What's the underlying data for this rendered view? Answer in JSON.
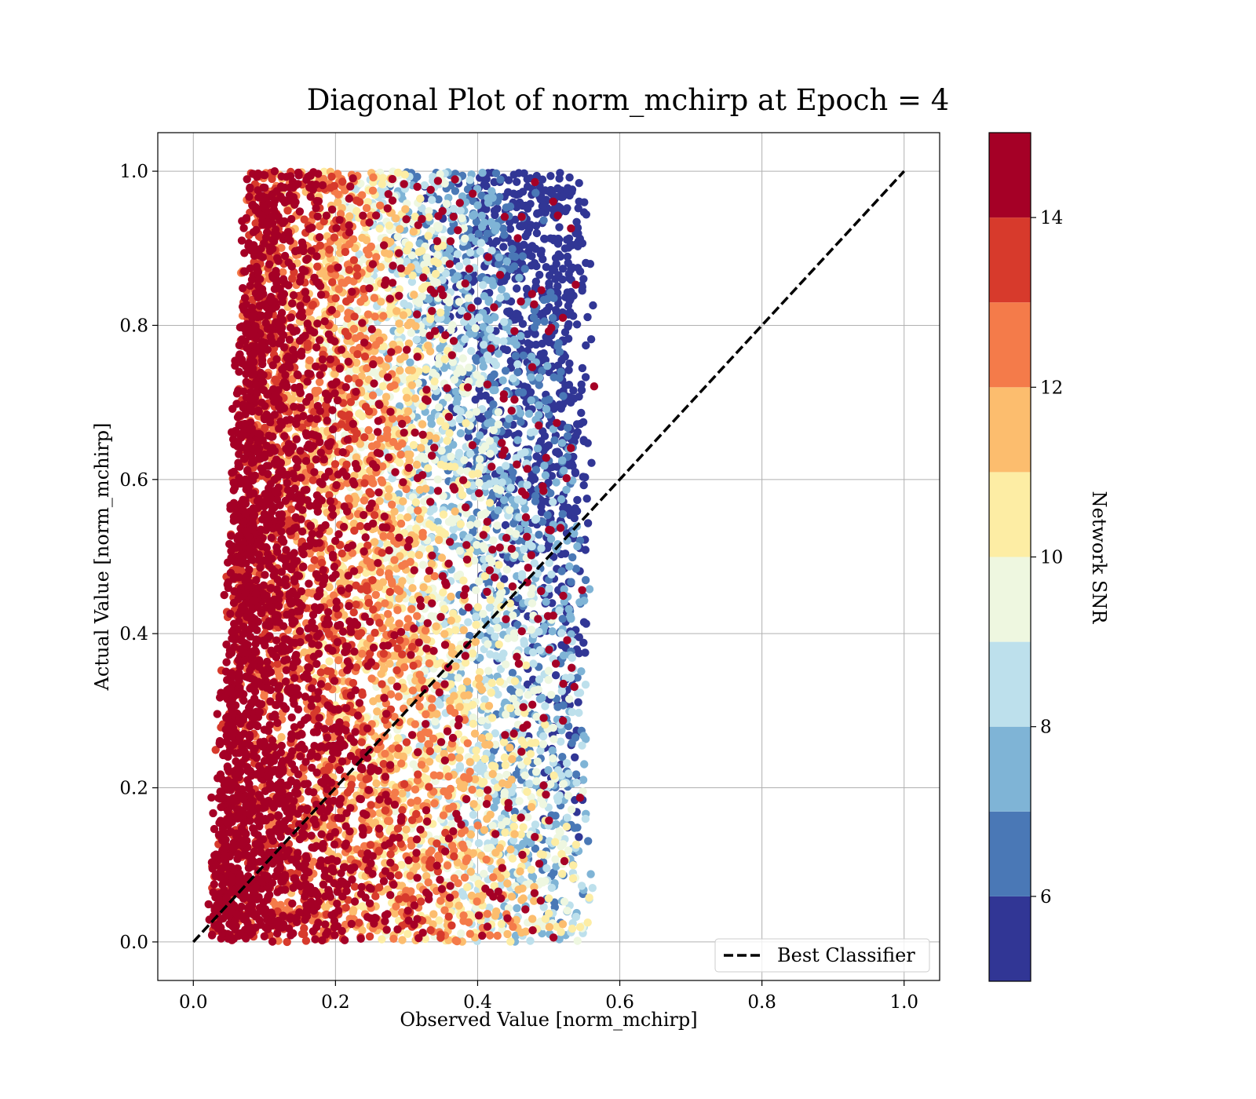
{
  "chart_data": {
    "type": "scatter",
    "title": "Diagonal Plot of norm_mchirp at Epoch = 4",
    "xlabel": "Observed Value [norm_mchirp]",
    "ylabel": "Actual Value [norm_mchirp]",
    "xlim": [
      -0.05,
      1.05
    ],
    "ylim": [
      -0.05,
      1.05
    ],
    "x_ticks": [
      "0.0",
      "0.2",
      "0.4",
      "0.6",
      "0.8",
      "1.0"
    ],
    "y_ticks": [
      "0.0",
      "0.2",
      "0.4",
      "0.6",
      "0.8",
      "1.0"
    ],
    "grid": true,
    "legend": {
      "position": "lower right",
      "entries": [
        "Best Classifier"
      ]
    },
    "reference_line": {
      "name": "Best Classifier",
      "style": "dashed",
      "color": "#000000",
      "x": [
        0.0,
        1.0
      ],
      "y": [
        0.0,
        1.0
      ]
    },
    "scatter_cloud": {
      "description": "dense scatter of predictions",
      "x_range": [
        0.02,
        0.6
      ],
      "y_range": [
        0.0,
        1.0
      ],
      "trend": "high SNR (red) concentrated at low observed values 0.05-0.2; low SNR (blue) at observed 0.45-0.57 and high actual values"
    },
    "colorbar": {
      "label": "Network SNR",
      "ticks": [
        "6",
        "8",
        "10",
        "12",
        "14"
      ],
      "tick_values": [
        6,
        8,
        10,
        12,
        14
      ],
      "range": [
        5,
        15
      ],
      "boundaries": [
        5,
        6,
        7,
        8,
        9,
        10,
        11,
        12,
        13,
        14,
        15
      ],
      "colors": [
        "#313695",
        "#4a78b6",
        "#7fb4d6",
        "#bde0ec",
        "#eef7e0",
        "#fdeda4",
        "#fcbd6e",
        "#f47b4a",
        "#d73a2c",
        "#a50026"
      ]
    }
  }
}
